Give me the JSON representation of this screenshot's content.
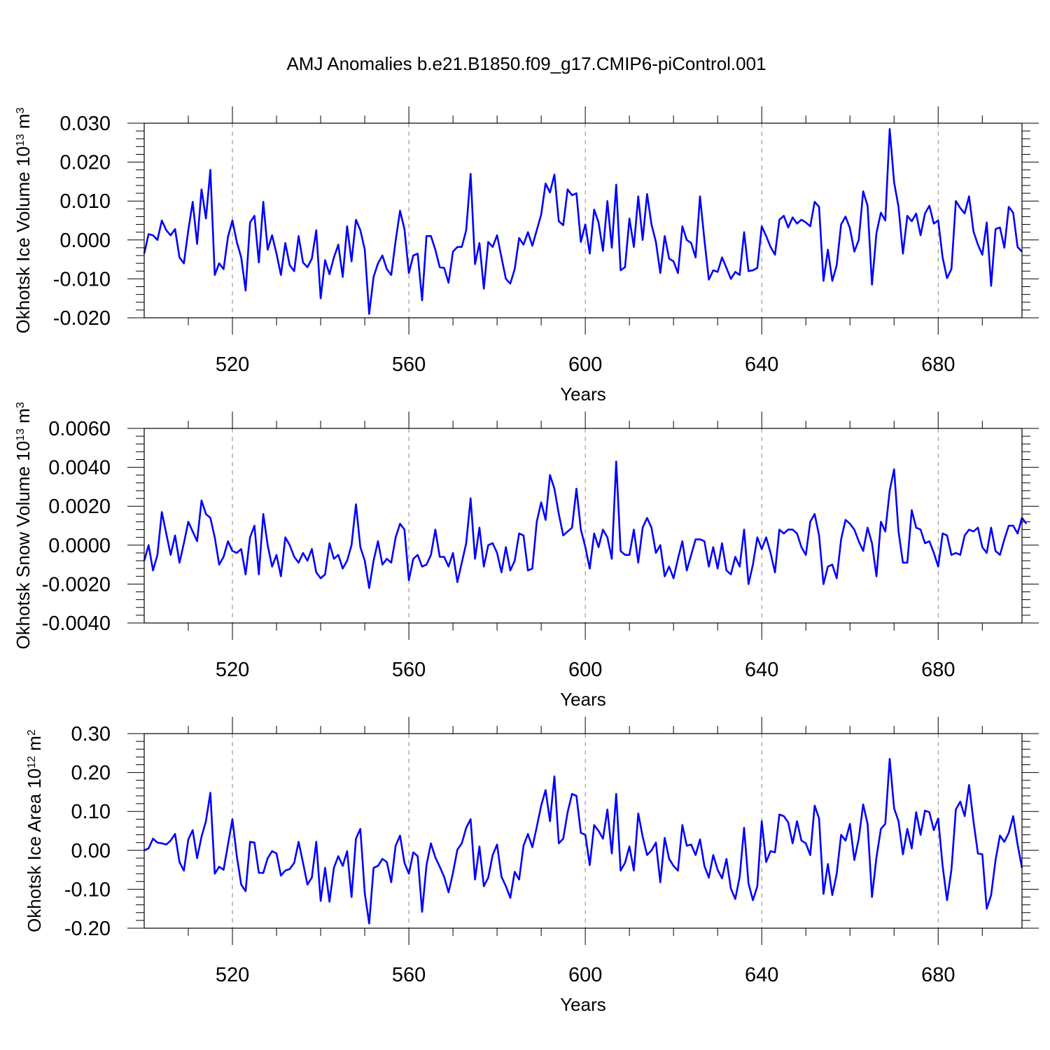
{
  "title": "AMJ Anomalies b.e21.B1850.f09_g17.CMIP6-piControl.001",
  "line_color": "#0000ff",
  "chart_data": [
    {
      "type": "line",
      "ylabel": "Okhotsk Ice Volume 10",
      "ylabel_exp": "13",
      "ylabel_unit": " m",
      "ylabel_unit_exp": "3",
      "xlabel": "Years",
      "xlim": [
        500,
        699
      ],
      "ylim": [
        -0.02,
        0.03
      ],
      "xticks": [
        520,
        560,
        600,
        640,
        680
      ],
      "xtick_labels": [
        "520",
        "560",
        "600",
        "640",
        "680"
      ],
      "yticks": [
        -0.02,
        -0.01,
        0,
        0.01,
        0.02,
        0.03
      ],
      "ytick_labels": [
        "-0.020",
        "-0.010",
        "0.000",
        "0.010",
        "0.020",
        "0.030"
      ],
      "x_start": 500,
      "values": [
        -0.0035,
        0.0015,
        0.0012,
        0.0,
        0.005,
        0.0025,
        0.0012,
        0.0028,
        -0.0045,
        -0.006,
        0.0025,
        0.0098,
        -0.001,
        0.013,
        0.0055,
        0.018,
        -0.009,
        -0.006,
        -0.0075,
        0.0008,
        0.005,
        -0.0005,
        -0.0045,
        -0.013,
        0.0045,
        0.0062,
        -0.0058,
        0.0098,
        -0.0025,
        0.0012,
        -0.0035,
        -0.009,
        -0.0008,
        -0.0065,
        -0.008,
        0.001,
        -0.0058,
        -0.007,
        -0.0048,
        0.0025,
        -0.015,
        -0.0052,
        -0.0088,
        -0.0045,
        -0.0012,
        -0.0095,
        0.0035,
        -0.0055,
        0.0052,
        0.0025,
        -0.0025,
        -0.019,
        -0.0095,
        -0.006,
        -0.004,
        -0.0075,
        -0.009,
        -0.0002,
        0.0075,
        0.0028,
        -0.0085,
        -0.004,
        -0.0035,
        -0.0155,
        0.001,
        0.001,
        -0.0025,
        -0.007,
        -0.0072,
        -0.011,
        -0.003,
        -0.0018,
        -0.0018,
        0.0025,
        0.017,
        -0.0062,
        -0.0008,
        -0.0125,
        -0.0005,
        -0.0018,
        0.0012,
        -0.0045,
        -0.01,
        -0.0112,
        -0.0075,
        0.0005,
        -0.0012,
        0.002,
        -0.0015,
        0.0025,
        0.0065,
        0.0145,
        0.0122,
        0.0168,
        0.0048,
        0.0038,
        0.013,
        0.0115,
        0.012,
        -0.0005,
        0.004,
        -0.0035,
        0.0078,
        0.0045,
        -0.0028,
        0.01,
        -0.002,
        0.0142,
        -0.0078,
        -0.007,
        0.0055,
        -0.0018,
        0.0112,
        0.0,
        0.0118,
        0.004,
        -0.0005,
        -0.0085,
        0.001,
        -0.0048,
        -0.0055,
        -0.0085,
        0.0035,
        0.0,
        -0.0008,
        -0.0045,
        0.0112,
        0.0,
        -0.0102,
        -0.0078,
        -0.0082,
        -0.0045,
        -0.0072,
        -0.01,
        -0.0082,
        -0.009,
        0.002,
        -0.008,
        -0.0078,
        -0.0072,
        0.0035,
        0.001,
        -0.0018,
        -0.0038,
        0.0052,
        0.0062,
        0.0032,
        0.0058,
        0.0042,
        0.0052,
        0.0045,
        0.0035,
        0.0098,
        0.0085,
        -0.0105,
        -0.0025,
        -0.0105,
        -0.0065,
        0.004,
        0.006,
        0.003,
        -0.003,
        0.0,
        0.0125,
        0.0088,
        -0.0115,
        0.0018,
        0.007,
        0.005,
        0.0285,
        0.0148,
        0.0085,
        -0.0035,
        0.0062,
        0.0048,
        0.0068,
        0.0012,
        0.0068,
        0.0088,
        0.0042,
        0.005,
        -0.0045,
        -0.0098,
        -0.0075,
        0.01,
        0.0082,
        0.0068,
        0.0112,
        0.0022,
        -0.0012,
        -0.0038,
        0.0045,
        -0.0118,
        0.0028,
        0.0032,
        -0.002,
        0.0085,
        0.007,
        -0.0018,
        -0.003
      ]
    },
    {
      "type": "line",
      "ylabel": "Okhotsk Snow Volume 10",
      "ylabel_exp": "13",
      "ylabel_unit": " m",
      "ylabel_unit_exp": "3",
      "xlabel": "Years",
      "xlim": [
        500,
        699
      ],
      "ylim": [
        -0.004,
        0.006
      ],
      "xticks": [
        520,
        560,
        600,
        640,
        680
      ],
      "xtick_labels": [
        "520",
        "560",
        "600",
        "640",
        "680"
      ],
      "yticks": [
        -0.004,
        -0.002,
        0,
        0.002,
        0.004,
        0.006
      ],
      "ytick_labels": [
        "-0.0040",
        "-0.0020",
        "0.0000",
        "0.0020",
        "0.0040",
        "0.0060"
      ],
      "x_start": 500,
      "values": [
        -0.0008,
        0.0,
        -0.0013,
        -0.0005,
        0.0017,
        0.0006,
        -0.0005,
        0.0005,
        -0.0009,
        0.0001,
        0.0012,
        0.0007,
        0.0002,
        0.0023,
        0.0016,
        0.0014,
        0.0004,
        -0.001,
        -0.0006,
        0.0002,
        -0.0003,
        -0.0004,
        -0.0002,
        -0.0015,
        0.0004,
        0.001,
        -0.0015,
        0.0016,
        0.0,
        -0.0011,
        -0.0005,
        -0.0016,
        0.0004,
        0.0,
        -0.0006,
        -0.0009,
        -0.0004,
        -0.0008,
        -0.0002,
        -0.0014,
        -0.0017,
        -0.0015,
        0.0001,
        -0.0007,
        -0.0005,
        -0.0012,
        -0.0008,
        0.0,
        0.0021,
        -0.0001,
        -0.0008,
        -0.0022,
        -0.0008,
        0.0002,
        -0.001,
        -0.0007,
        -0.0009,
        0.0004,
        0.0011,
        0.0008,
        -0.0018,
        -0.0007,
        -0.0005,
        -0.0011,
        -0.001,
        -0.0005,
        0.0008,
        -0.0006,
        -0.0006,
        -0.0011,
        -0.0004,
        -0.0019,
        -0.0009,
        0.0001,
        0.0024,
        -0.0007,
        0.0009,
        -0.0011,
        0.0,
        0.0001,
        -0.0004,
        -0.0014,
        -0.0001,
        -0.0013,
        -0.0008,
        0.0006,
        0.0005,
        -0.0013,
        -0.0012,
        0.0012,
        0.0022,
        0.0013,
        0.0036,
        0.0029,
        0.0016,
        0.0005,
        0.0007,
        0.0009,
        0.0029,
        0.0008,
        -0.0001,
        -0.0012,
        0.0006,
        -0.0001,
        0.0008,
        0.0004,
        -0.0007,
        0.0043,
        -0.0003,
        -0.0005,
        -0.0005,
        0.0008,
        -0.0009,
        0.0009,
        0.0014,
        0.0009,
        -0.0004,
        0.0,
        -0.0016,
        -0.0011,
        -0.0017,
        -0.0007,
        0.0002,
        -0.0013,
        -0.0005,
        0.0003,
        0.0003,
        0.0002,
        -0.0011,
        -0.0001,
        -0.0012,
        0.0001,
        -0.0013,
        -0.0015,
        -0.0006,
        -0.0011,
        0.0008,
        -0.002,
        -0.001,
        0.0004,
        -0.0002,
        0.0004,
        -0.0004,
        -0.0014,
        0.0008,
        0.0006,
        0.0008,
        0.0008,
        0.0006,
        -0.0001,
        -0.0005,
        0.0012,
        0.0016,
        0.0005,
        -0.002,
        -0.0011,
        -0.001,
        -0.0017,
        0.0003,
        0.0013,
        0.0011,
        0.0008,
        0.0002,
        -0.0003,
        0.0009,
        0.0001,
        -0.0016,
        0.0012,
        0.0007,
        0.0028,
        0.0039,
        0.0007,
        -0.0009,
        -0.0009,
        0.0018,
        0.0009,
        0.0008,
        0.0001,
        0.0002,
        -0.0004,
        -0.0011,
        0.0006,
        0.0005,
        -0.0005,
        -0.0004,
        -0.0005,
        0.0005,
        0.0008,
        0.0007,
        0.0009,
        -0.0001,
        -0.0004,
        0.0009,
        -0.0003,
        -0.0005,
        0.0003,
        0.001,
        0.001,
        0.0006,
        0.0014,
        0.0011
      ]
    },
    {
      "type": "line",
      "ylabel": "Okhotsk Ice Area 10",
      "ylabel_exp": "12",
      "ylabel_unit": " m",
      "ylabel_unit_exp": "2",
      "xlabel": "Years",
      "xlim": [
        500,
        699
      ],
      "ylim": [
        -0.2,
        0.3
      ],
      "xticks": [
        520,
        560,
        600,
        640,
        680
      ],
      "xtick_labels": [
        "520",
        "560",
        "600",
        "640",
        "680"
      ],
      "yticks": [
        -0.2,
        -0.1,
        0,
        0.1,
        0.2,
        0.3
      ],
      "ytick_labels": [
        "-0.20",
        "-0.10",
        "0.00",
        "0.10",
        "0.20",
        "0.30"
      ],
      "x_start": 500,
      "values": [
        0.0,
        0.005,
        0.03,
        0.02,
        0.018,
        0.015,
        0.025,
        0.042,
        -0.03,
        -0.052,
        0.028,
        0.052,
        -0.02,
        0.035,
        0.075,
        0.148,
        -0.06,
        -0.042,
        -0.05,
        0.015,
        0.08,
        -0.015,
        -0.088,
        -0.105,
        0.022,
        0.02,
        -0.058,
        -0.058,
        -0.02,
        -0.002,
        -0.008,
        -0.065,
        -0.052,
        -0.048,
        -0.032,
        0.022,
        -0.032,
        -0.088,
        -0.07,
        0.022,
        -0.13,
        -0.045,
        -0.132,
        -0.045,
        -0.015,
        -0.04,
        -0.002,
        -0.12,
        0.03,
        0.055,
        -0.11,
        -0.188,
        -0.045,
        -0.04,
        -0.022,
        -0.03,
        -0.082,
        0.012,
        0.038,
        -0.032,
        -0.06,
        -0.005,
        -0.015,
        -0.158,
        -0.038,
        0.018,
        -0.018,
        -0.042,
        -0.068,
        -0.108,
        -0.058,
        0.002,
        0.018,
        0.058,
        0.08,
        -0.075,
        0.01,
        -0.092,
        -0.07,
        -0.012,
        0.015,
        -0.068,
        -0.092,
        -0.122,
        -0.055,
        -0.075,
        0.012,
        0.042,
        0.008,
        0.06,
        0.115,
        0.155,
        0.075,
        0.19,
        0.018,
        0.03,
        0.098,
        0.145,
        0.14,
        0.045,
        0.04,
        -0.038,
        0.065,
        0.05,
        0.03,
        0.105,
        -0.008,
        0.145,
        -0.052,
        -0.032,
        0.01,
        -0.052,
        0.095,
        0.035,
        -0.012,
        0.0,
        0.02,
        -0.082,
        0.032,
        -0.022,
        -0.04,
        -0.052,
        0.065,
        0.012,
        0.015,
        -0.012,
        0.028,
        -0.04,
        -0.07,
        -0.012,
        -0.05,
        -0.072,
        -0.022,
        -0.098,
        -0.125,
        -0.068,
        0.058,
        -0.085,
        -0.128,
        -0.092,
        0.075,
        -0.03,
        -0.002,
        -0.005,
        0.092,
        0.088,
        0.072,
        0.018,
        0.075,
        0.025,
        0.018,
        -0.012,
        0.115,
        0.082,
        -0.112,
        -0.035,
        -0.115,
        -0.06,
        0.04,
        0.025,
        0.068,
        -0.025,
        0.03,
        0.118,
        0.068,
        -0.12,
        -0.018,
        0.055,
        0.068,
        0.235,
        0.108,
        0.075,
        -0.01,
        0.055,
        0.005,
        0.098,
        0.04,
        0.102,
        0.098,
        0.052,
        0.082,
        -0.04,
        -0.128,
        -0.05,
        0.105,
        0.125,
        0.088,
        0.168,
        0.075,
        -0.008,
        -0.01,
        -0.15,
        -0.115,
        -0.025,
        0.038,
        0.022,
        0.045,
        0.088,
        0.015,
        -0.045
      ]
    }
  ]
}
